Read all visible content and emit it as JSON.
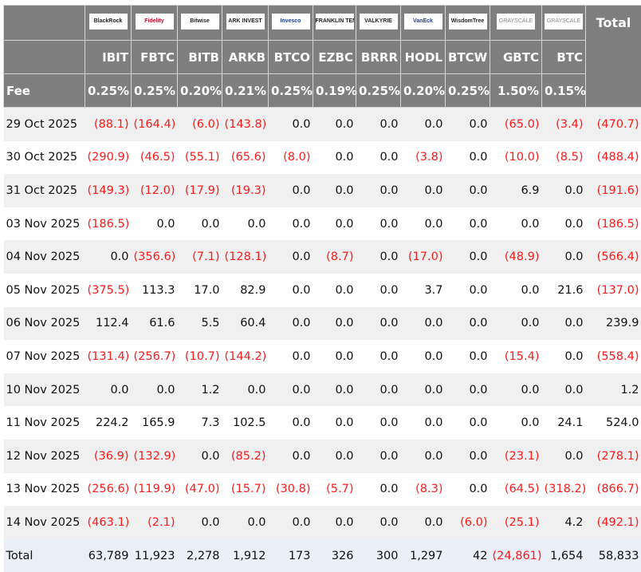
{
  "header": {
    "issuers": [
      "BlackRock",
      "Fidelity",
      "Bitwise",
      "ARK INVEST",
      "Invesco",
      "FRANKLIN TEMPLETON",
      "VALKYRIE",
      "VanEck",
      "WisdomTree",
      "GRAYSCALE",
      "GRAYSCALE"
    ],
    "total_label": "Total",
    "tickers": [
      "IBIT",
      "FBTC",
      "BITB",
      "ARKB",
      "BTCO",
      "EZBC",
      "BRRR",
      "HODL",
      "BTCW",
      "GBTC",
      "BTC"
    ],
    "fee_label": "Fee",
    "fees": [
      "0.25%",
      "0.25%",
      "0.20%",
      "0.21%",
      "0.25%",
      "0.19%",
      "0.25%",
      "0.20%",
      "0.25%",
      "1.50%",
      "0.15%"
    ]
  },
  "colors": {
    "header_bg": "#7f7f7f",
    "negative": "#ff1a1a",
    "total_row_bg": "#eaeff8",
    "alt_row_bg": "#f0f0f0"
  },
  "rows": [
    {
      "date": "29 Oct 2025",
      "values": [
        "(88.1)",
        "(164.4)",
        "(6.0)",
        "(143.8)",
        "0.0",
        "0.0",
        "0.0",
        "0.0",
        "0.0",
        "(65.0)",
        "(3.4)",
        "(470.7)"
      ]
    },
    {
      "date": "30 Oct 2025",
      "values": [
        "(290.9)",
        "(46.5)",
        "(55.1)",
        "(65.6)",
        "(8.0)",
        "0.0",
        "0.0",
        "(3.8)",
        "0.0",
        "(10.0)",
        "(8.5)",
        "(488.4)"
      ]
    },
    {
      "date": "31 Oct 2025",
      "values": [
        "(149.3)",
        "(12.0)",
        "(17.9)",
        "(19.3)",
        "0.0",
        "0.0",
        "0.0",
        "0.0",
        "0.0",
        "6.9",
        "0.0",
        "(191.6)"
      ]
    },
    {
      "date": "03 Nov 2025",
      "values": [
        "(186.5)",
        "0.0",
        "0.0",
        "0.0",
        "0.0",
        "0.0",
        "0.0",
        "0.0",
        "0.0",
        "0.0",
        "0.0",
        "(186.5)"
      ]
    },
    {
      "date": "04 Nov 2025",
      "values": [
        "0.0",
        "(356.6)",
        "(7.1)",
        "(128.1)",
        "0.0",
        "(8.7)",
        "0.0",
        "(17.0)",
        "0.0",
        "(48.9)",
        "0.0",
        "(566.4)"
      ]
    },
    {
      "date": "05 Nov 2025",
      "values": [
        "(375.5)",
        "113.3",
        "17.0",
        "82.9",
        "0.0",
        "0.0",
        "0.0",
        "3.7",
        "0.0",
        "0.0",
        "21.6",
        "(137.0)"
      ]
    },
    {
      "date": "06 Nov 2025",
      "values": [
        "112.4",
        "61.6",
        "5.5",
        "60.4",
        "0.0",
        "0.0",
        "0.0",
        "0.0",
        "0.0",
        "0.0",
        "0.0",
        "239.9"
      ]
    },
    {
      "date": "07 Nov 2025",
      "values": [
        "(131.4)",
        "(256.7)",
        "(10.7)",
        "(144.2)",
        "0.0",
        "0.0",
        "0.0",
        "0.0",
        "0.0",
        "(15.4)",
        "0.0",
        "(558.4)"
      ]
    },
    {
      "date": "10 Nov 2025",
      "values": [
        "0.0",
        "0.0",
        "1.2",
        "0.0",
        "0.0",
        "0.0",
        "0.0",
        "0.0",
        "0.0",
        "0.0",
        "0.0",
        "1.2"
      ]
    },
    {
      "date": "11 Nov 2025",
      "values": [
        "224.2",
        "165.9",
        "7.3",
        "102.5",
        "0.0",
        "0.0",
        "0.0",
        "0.0",
        "0.0",
        "0.0",
        "24.1",
        "524.0"
      ]
    },
    {
      "date": "12 Nov 2025",
      "values": [
        "(36.9)",
        "(132.9)",
        "0.0",
        "(85.2)",
        "0.0",
        "0.0",
        "0.0",
        "0.0",
        "0.0",
        "(23.1)",
        "0.0",
        "(278.1)"
      ]
    },
    {
      "date": "13 Nov 2025",
      "values": [
        "(256.6)",
        "(119.9)",
        "(47.0)",
        "(15.7)",
        "(30.8)",
        "(5.7)",
        "0.0",
        "(8.3)",
        "0.0",
        "(64.5)",
        "(318.2)",
        "(866.7)"
      ]
    },
    {
      "date": "14 Nov 2025",
      "values": [
        "(463.1)",
        "(2.1)",
        "0.0",
        "0.0",
        "0.0",
        "0.0",
        "0.0",
        "0.0",
        "(6.0)",
        "(25.1)",
        "4.2",
        "(492.1)"
      ]
    }
  ],
  "total_row": {
    "label": "Total",
    "values": [
      "63,789",
      "11,923",
      "2,278",
      "1,912",
      "173",
      "326",
      "300",
      "1,297",
      "42",
      "(24,861)",
      "1,654",
      "58,833"
    ]
  }
}
